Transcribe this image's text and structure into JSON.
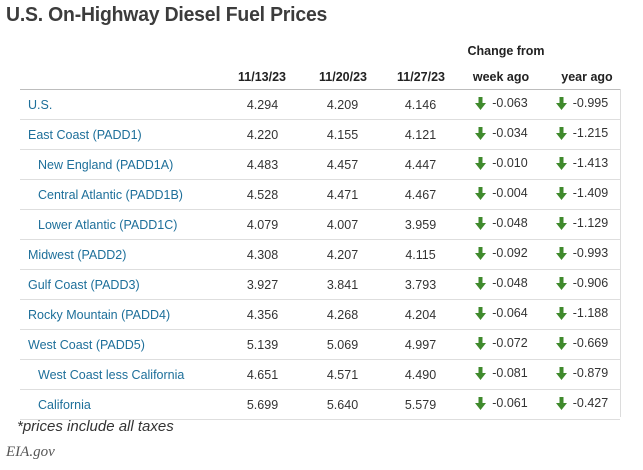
{
  "title": "U.S. On-Highway Diesel Fuel Prices",
  "change_group_label": "Change from",
  "columns": {
    "d1": "11/13/23",
    "d2": "11/20/23",
    "d3": "11/27/23",
    "week": "week ago",
    "year": "year ago"
  },
  "rows": [
    {
      "region": "U.S.",
      "indent": false,
      "d1": "4.294",
      "d2": "4.209",
      "d3": "4.146",
      "week": "-0.063",
      "year": "-0.995"
    },
    {
      "region": "East Coast (PADD1)",
      "indent": false,
      "d1": "4.220",
      "d2": "4.155",
      "d3": "4.121",
      "week": "-0.034",
      "year": "-1.215"
    },
    {
      "region": "New England (PADD1A)",
      "indent": true,
      "d1": "4.483",
      "d2": "4.457",
      "d3": "4.447",
      "week": "-0.010",
      "year": "-1.413"
    },
    {
      "region": "Central Atlantic (PADD1B)",
      "indent": true,
      "d1": "4.528",
      "d2": "4.471",
      "d3": "4.467",
      "week": "-0.004",
      "year": "-1.409"
    },
    {
      "region": "Lower Atlantic (PADD1C)",
      "indent": true,
      "d1": "4.079",
      "d2": "4.007",
      "d3": "3.959",
      "week": "-0.048",
      "year": "-1.129"
    },
    {
      "region": "Midwest (PADD2)",
      "indent": false,
      "d1": "4.308",
      "d2": "4.207",
      "d3": "4.115",
      "week": "-0.092",
      "year": "-0.993"
    },
    {
      "region": "Gulf Coast (PADD3)",
      "indent": false,
      "d1": "3.927",
      "d2": "3.841",
      "d3": "3.793",
      "week": "-0.048",
      "year": "-0.906"
    },
    {
      "region": "Rocky Mountain (PADD4)",
      "indent": false,
      "d1": "4.356",
      "d2": "4.268",
      "d3": "4.204",
      "week": "-0.064",
      "year": "-1.188"
    },
    {
      "region": "West Coast (PADD5)",
      "indent": false,
      "d1": "5.139",
      "d2": "5.069",
      "d3": "4.997",
      "week": "-0.072",
      "year": "-0.669"
    },
    {
      "region": "West Coast less California",
      "indent": true,
      "d1": "4.651",
      "d2": "4.571",
      "d3": "4.490",
      "week": "-0.081",
      "year": "-0.879"
    },
    {
      "region": "California",
      "indent": true,
      "d1": "5.699",
      "d2": "5.640",
      "d3": "5.579",
      "week": "-0.061",
      "year": "-0.427"
    }
  ],
  "footnote": "*prices include all taxes",
  "source": "EIA.gov",
  "colors": {
    "link": "#1d6f9a",
    "down_arrow": "#3f8a2c",
    "rule": "#dedede"
  },
  "icons": {
    "change_direction": "down-arrow-icon"
  }
}
